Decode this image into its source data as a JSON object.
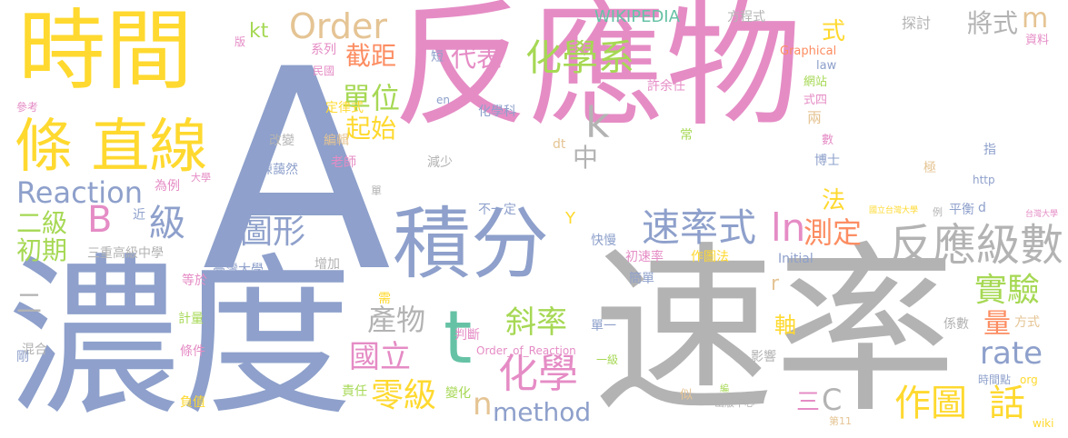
{
  "palette": {
    "pink": "#e58cc5",
    "blue": "#8ea0cb",
    "gray": "#b3b3b3",
    "yellow": "#ffd92f",
    "green": "#a6d854",
    "tan": "#e5c494",
    "orange": "#fc8d62",
    "teal": "#66c2a5"
  },
  "words": {
    "w001": "反應物",
    "w002": "A",
    "w003": "濃度",
    "w004": "速率",
    "w005": "時間",
    "w006": "積分",
    "w007": "條 直線",
    "w008": "反應級數",
    "w009": "速率式",
    "w010": "化學系",
    "w011": "化學",
    "w012": "圖形",
    "w013": "t",
    "w014": "k",
    "w015": "ln",
    "w016": "測定",
    "w017": "實驗",
    "w018": "rate",
    "w019": "Order",
    "w020": "Reaction",
    "w021": "B",
    "w022": "級",
    "w023": "二級",
    "w024": "初期",
    "w025": "單位",
    "w026": "起始",
    "w027": "截距",
    "w028": "代表",
    "w029": "產物",
    "w030": "國立",
    "w031": "零級",
    "w032": "斜率",
    "w033": "method",
    "w034": "作圖",
    "w035": "話",
    "w036": "量",
    "w037": "軸",
    "w038": "C",
    "w039": "三",
    "w040": "n",
    "w041": "中",
    "w042": "將式",
    "w043": "m",
    "w044": "式",
    "w045": "法",
    "w046": "kt",
    "w047": "WIKIPEDIA",
    "w048": "方程式",
    "w049": "探討",
    "w050": "資料",
    "w051": "版",
    "w052": "參考",
    "w053": "民國",
    "w054": "系列",
    "w055": "定律式",
    "w056": "短",
    "w057": "en",
    "w058": "許余任",
    "w059": "化學科",
    "w060": "Graphical",
    "w061": "law",
    "w062": "網站",
    "w063": "式四",
    "w064": "兩",
    "w065": "數",
    "w066": "常",
    "w067": "博士",
    "w068": "指",
    "w069": "極",
    "w070": "http",
    "w071": "改變",
    "w072": "編輯",
    "w073": "老師",
    "w074": "dt",
    "w075": "減少",
    "w076": "陳藹然",
    "w077": "為例",
    "w078": "大學",
    "w079": "單",
    "w080": "近",
    "w081": "不一定",
    "w082": "Y",
    "w083": "快慢",
    "w084": "三重高級中學",
    "w085": "臺灣大學",
    "w086": "增加",
    "w087": "初速率",
    "w088": "作圖法",
    "w089": "Initial",
    "w090": "國立台灣大學",
    "w091": "例",
    "w092": "平衡",
    "w093": "d",
    "w094": "台灣大學",
    "w095": "r",
    "w096": "簡單",
    "w097": "等於",
    "w098": "需",
    "w099": "二",
    "w100": "計量",
    "w101": "混合",
    "w102": "判斷",
    "w103": "單一",
    "w104": "係數",
    "w105": "方式",
    "w106": "Order_of_Reaction",
    "w107": "條件",
    "w108": "剛",
    "w109": "一級",
    "w110": "影響",
    "w111": "94年",
    "w112": "時間點",
    "w113": "org",
    "w114": "負值",
    "w115": "責任",
    "w116": "變化",
    "w117": "似",
    "w118": "編",
    "w119": "出版中心",
    "w120": "第11",
    "w121": "wiki"
  }
}
